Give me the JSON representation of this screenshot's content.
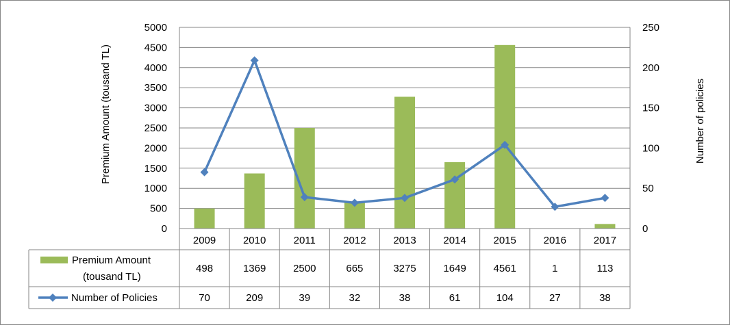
{
  "chart_data": {
    "type": "bar",
    "categories": [
      "2009",
      "2010",
      "2011",
      "2012",
      "2013",
      "2014",
      "2015",
      "2016",
      "2017"
    ],
    "series": [
      {
        "name": "Premium Amount (tousand TL)",
        "legend_lines": [
          "Premium Amount",
          "(tousand TL)"
        ],
        "type": "bar",
        "axis": "left",
        "color": "#9BBB59",
        "values": [
          498,
          1369,
          2500,
          665,
          3275,
          1649,
          4561,
          1,
          113
        ]
      },
      {
        "name": "Number of Policies",
        "legend_lines": [
          "Number of Policies"
        ],
        "type": "line",
        "axis": "right",
        "color": "#4F81BD",
        "marker": "diamond",
        "values": [
          70,
          209,
          39,
          32,
          38,
          61,
          104,
          27,
          38
        ]
      }
    ],
    "ylabel_left": "Premium Amount (tousand TL)",
    "ylabel_right": "Number of policies",
    "ylim_left": [
      0,
      5000
    ],
    "yticks_left": [
      0,
      500,
      1000,
      1500,
      2000,
      2500,
      3000,
      3500,
      4000,
      4500,
      5000
    ],
    "ylim_right": [
      0,
      250
    ],
    "yticks_right": [
      0,
      50,
      100,
      150,
      200,
      250
    ],
    "grid": true,
    "legend": "data table below plot"
  }
}
